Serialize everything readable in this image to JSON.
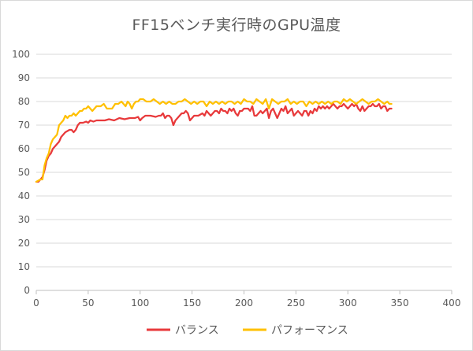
{
  "chart_data": {
    "type": "line",
    "title": "FF15ベンチ実行時のGPU温度",
    "xlabel": "",
    "ylabel": "",
    "xlim": [
      0,
      400
    ],
    "ylim": [
      0,
      100
    ],
    "xticks": [
      0,
      50,
      100,
      150,
      200,
      250,
      300,
      350,
      400
    ],
    "yticks": [
      0,
      10,
      20,
      30,
      40,
      50,
      60,
      70,
      80,
      90,
      100
    ],
    "grid": "horizontal",
    "legend": "bottom",
    "colors": {
      "balance": "#e8393b",
      "performance": "#ffc000"
    },
    "series": [
      {
        "name": "バランス",
        "color": "#e8393b",
        "points": [
          [
            0,
            46
          ],
          [
            2,
            46
          ],
          [
            4,
            47
          ],
          [
            6,
            48
          ],
          [
            8,
            51
          ],
          [
            10,
            55
          ],
          [
            12,
            57
          ],
          [
            14,
            58
          ],
          [
            16,
            60
          ],
          [
            18,
            61
          ],
          [
            20,
            62
          ],
          [
            22,
            63
          ],
          [
            24,
            65
          ],
          [
            26,
            66
          ],
          [
            28,
            67
          ],
          [
            30,
            67.5
          ],
          [
            32,
            68
          ],
          [
            34,
            68
          ],
          [
            36,
            67
          ],
          [
            38,
            68
          ],
          [
            40,
            70
          ],
          [
            42,
            71
          ],
          [
            45,
            71
          ],
          [
            48,
            71.5
          ],
          [
            50,
            71
          ],
          [
            52,
            72
          ],
          [
            55,
            71.5
          ],
          [
            58,
            72
          ],
          [
            62,
            72
          ],
          [
            66,
            72
          ],
          [
            70,
            72.5
          ],
          [
            75,
            72
          ],
          [
            80,
            73
          ],
          [
            85,
            72.5
          ],
          [
            90,
            73
          ],
          [
            95,
            73
          ],
          [
            98,
            73.5
          ],
          [
            100,
            72
          ],
          [
            102,
            73
          ],
          [
            105,
            74
          ],
          [
            110,
            74
          ],
          [
            115,
            73.5
          ],
          [
            118,
            74
          ],
          [
            120,
            74
          ],
          [
            122,
            75
          ],
          [
            124,
            73
          ],
          [
            126,
            74
          ],
          [
            128,
            74
          ],
          [
            130,
            73
          ],
          [
            132,
            70
          ],
          [
            134,
            72
          ],
          [
            136,
            73
          ],
          [
            138,
            74
          ],
          [
            140,
            75
          ],
          [
            142,
            75
          ],
          [
            144,
            76
          ],
          [
            146,
            75
          ],
          [
            148,
            72
          ],
          [
            150,
            73
          ],
          [
            152,
            74
          ],
          [
            156,
            74
          ],
          [
            160,
            75
          ],
          [
            162,
            74
          ],
          [
            164,
            76
          ],
          [
            166,
            75
          ],
          [
            168,
            74
          ],
          [
            170,
            75
          ],
          [
            172,
            76
          ],
          [
            174,
            76
          ],
          [
            176,
            75
          ],
          [
            178,
            77
          ],
          [
            180,
            76
          ],
          [
            182,
            76
          ],
          [
            184,
            75
          ],
          [
            186,
            77
          ],
          [
            188,
            76
          ],
          [
            190,
            77
          ],
          [
            192,
            75
          ],
          [
            194,
            74
          ],
          [
            196,
            76
          ],
          [
            198,
            76
          ],
          [
            200,
            77
          ],
          [
            202,
            77
          ],
          [
            204,
            77
          ],
          [
            206,
            76
          ],
          [
            208,
            78
          ],
          [
            210,
            74
          ],
          [
            212,
            74
          ],
          [
            214,
            75
          ],
          [
            216,
            76
          ],
          [
            218,
            75
          ],
          [
            220,
            76
          ],
          [
            222,
            77
          ],
          [
            224,
            73
          ],
          [
            226,
            76
          ],
          [
            228,
            77
          ],
          [
            230,
            75
          ],
          [
            232,
            73
          ],
          [
            234,
            75
          ],
          [
            236,
            77
          ],
          [
            238,
            76
          ],
          [
            240,
            78
          ],
          [
            242,
            75
          ],
          [
            244,
            76
          ],
          [
            246,
            77
          ],
          [
            248,
            74
          ],
          [
            250,
            75
          ],
          [
            252,
            76
          ],
          [
            254,
            75
          ],
          [
            256,
            74
          ],
          [
            258,
            76
          ],
          [
            260,
            76
          ],
          [
            262,
            74
          ],
          [
            264,
            76
          ],
          [
            266,
            75
          ],
          [
            268,
            77
          ],
          [
            270,
            76
          ],
          [
            272,
            78
          ],
          [
            274,
            77
          ],
          [
            276,
            78
          ],
          [
            278,
            77
          ],
          [
            280,
            78
          ],
          [
            282,
            77
          ],
          [
            284,
            78
          ],
          [
            286,
            79
          ],
          [
            288,
            78
          ],
          [
            290,
            77
          ],
          [
            292,
            78
          ],
          [
            294,
            78
          ],
          [
            296,
            79
          ],
          [
            298,
            78
          ],
          [
            300,
            77
          ],
          [
            302,
            78
          ],
          [
            304,
            79
          ],
          [
            306,
            78
          ],
          [
            308,
            79
          ],
          [
            310,
            77
          ],
          [
            312,
            76
          ],
          [
            314,
            78
          ],
          [
            316,
            76
          ],
          [
            318,
            77
          ],
          [
            320,
            78
          ],
          [
            322,
            78
          ],
          [
            324,
            79
          ],
          [
            326,
            78
          ],
          [
            328,
            78
          ],
          [
            330,
            79
          ],
          [
            332,
            77
          ],
          [
            334,
            78
          ],
          [
            336,
            78
          ],
          [
            338,
            76
          ],
          [
            340,
            77
          ],
          [
            342,
            77
          ]
        ]
      },
      {
        "name": "パフォーマンス",
        "color": "#ffc000",
        "points": [
          [
            0,
            46
          ],
          [
            2,
            46.5
          ],
          [
            4,
            47
          ],
          [
            6,
            47
          ],
          [
            8,
            53
          ],
          [
            10,
            56
          ],
          [
            12,
            58
          ],
          [
            14,
            62
          ],
          [
            16,
            64
          ],
          [
            18,
            65
          ],
          [
            20,
            66
          ],
          [
            22,
            70
          ],
          [
            24,
            71
          ],
          [
            26,
            72
          ],
          [
            28,
            74
          ],
          [
            30,
            73
          ],
          [
            32,
            74
          ],
          [
            34,
            74
          ],
          [
            36,
            75
          ],
          [
            38,
            74
          ],
          [
            40,
            75
          ],
          [
            42,
            76
          ],
          [
            44,
            76
          ],
          [
            46,
            77
          ],
          [
            48,
            77
          ],
          [
            50,
            78
          ],
          [
            52,
            77
          ],
          [
            54,
            76
          ],
          [
            56,
            77
          ],
          [
            58,
            78
          ],
          [
            60,
            78
          ],
          [
            62,
            78
          ],
          [
            65,
            79
          ],
          [
            68,
            77
          ],
          [
            70,
            77
          ],
          [
            73,
            77
          ],
          [
            76,
            79
          ],
          [
            79,
            79
          ],
          [
            82,
            80
          ],
          [
            84,
            79
          ],
          [
            86,
            78
          ],
          [
            88,
            80
          ],
          [
            90,
            79
          ],
          [
            92,
            77
          ],
          [
            94,
            79
          ],
          [
            96,
            80
          ],
          [
            98,
            80
          ],
          [
            100,
            81
          ],
          [
            103,
            81
          ],
          [
            106,
            80
          ],
          [
            110,
            80
          ],
          [
            113,
            81
          ],
          [
            116,
            80
          ],
          [
            119,
            79
          ],
          [
            122,
            80
          ],
          [
            125,
            79
          ],
          [
            128,
            80
          ],
          [
            131,
            79
          ],
          [
            134,
            79
          ],
          [
            137,
            80
          ],
          [
            140,
            80
          ],
          [
            143,
            81
          ],
          [
            146,
            80
          ],
          [
            149,
            79
          ],
          [
            152,
            80
          ],
          [
            155,
            79
          ],
          [
            158,
            80
          ],
          [
            161,
            80
          ],
          [
            164,
            78
          ],
          [
            167,
            80
          ],
          [
            170,
            79
          ],
          [
            173,
            80
          ],
          [
            176,
            79
          ],
          [
            179,
            80
          ],
          [
            182,
            79
          ],
          [
            185,
            80
          ],
          [
            188,
            80
          ],
          [
            191,
            79
          ],
          [
            194,
            80
          ],
          [
            197,
            79
          ],
          [
            200,
            81
          ],
          [
            203,
            80
          ],
          [
            206,
            80
          ],
          [
            209,
            79
          ],
          [
            212,
            81
          ],
          [
            215,
            80
          ],
          [
            218,
            79
          ],
          [
            221,
            81
          ],
          [
            224,
            77
          ],
          [
            227,
            81
          ],
          [
            230,
            80
          ],
          [
            233,
            79
          ],
          [
            236,
            80
          ],
          [
            239,
            80
          ],
          [
            242,
            81
          ],
          [
            245,
            79
          ],
          [
            248,
            80
          ],
          [
            251,
            79
          ],
          [
            254,
            80
          ],
          [
            257,
            80
          ],
          [
            260,
            78
          ],
          [
            263,
            80
          ],
          [
            266,
            79
          ],
          [
            269,
            80
          ],
          [
            272,
            79
          ],
          [
            275,
            80
          ],
          [
            278,
            79
          ],
          [
            281,
            80
          ],
          [
            284,
            79
          ],
          [
            287,
            80
          ],
          [
            290,
            80
          ],
          [
            293,
            79
          ],
          [
            296,
            81
          ],
          [
            299,
            80
          ],
          [
            302,
            81
          ],
          [
            305,
            80
          ],
          [
            308,
            79
          ],
          [
            311,
            80
          ],
          [
            314,
            81
          ],
          [
            317,
            80
          ],
          [
            320,
            79
          ],
          [
            323,
            80
          ],
          [
            326,
            80
          ],
          [
            329,
            81
          ],
          [
            332,
            80
          ],
          [
            335,
            79
          ],
          [
            338,
            80
          ],
          [
            340,
            79
          ],
          [
            342,
            79
          ]
        ]
      }
    ]
  }
}
